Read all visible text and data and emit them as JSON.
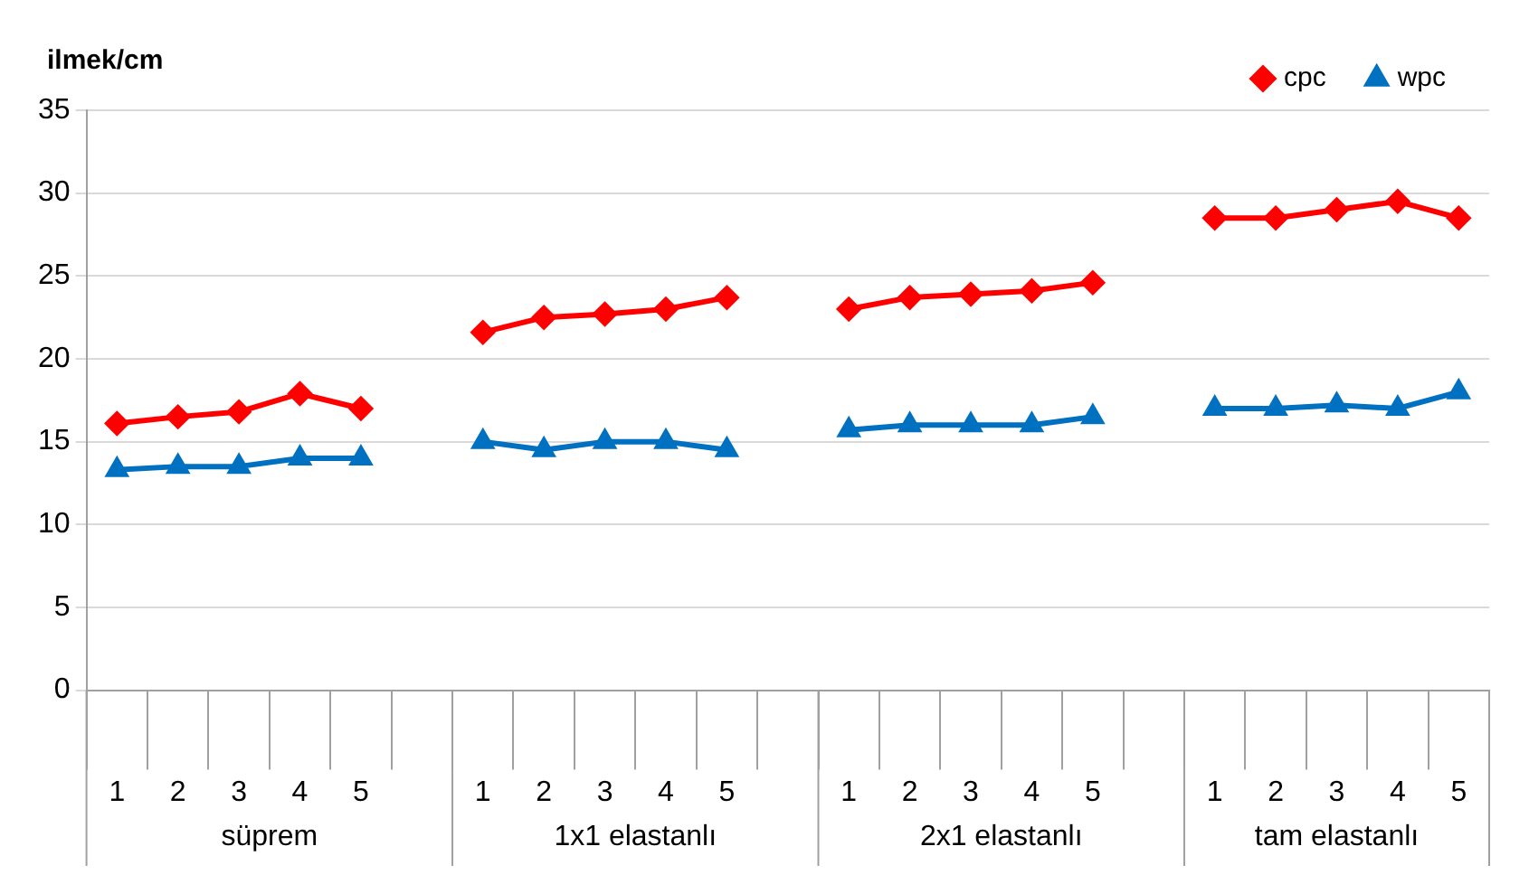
{
  "chart_data": {
    "type": "line",
    "ylabel": "ilmek/cm",
    "categories": [
      "1",
      "2",
      "3",
      "4",
      "5",
      null,
      "1",
      "2",
      "3",
      "4",
      "5",
      null,
      "1",
      "2",
      "3",
      "4",
      "5",
      null,
      "1",
      "2",
      "3",
      "4",
      "5"
    ],
    "series": [
      {
        "name": "cpc",
        "color": "#ff0000",
        "marker": "diamond",
        "values": [
          16.1,
          16.5,
          16.8,
          17.9,
          17.0,
          null,
          21.6,
          22.5,
          22.7,
          23.0,
          23.7,
          null,
          23.0,
          23.7,
          23.9,
          24.1,
          24.6,
          null,
          28.5,
          28.5,
          29.0,
          29.5,
          28.5
        ]
      },
      {
        "name": "wpc",
        "color": "#0070c0",
        "marker": "triangle",
        "values": [
          13.3,
          13.5,
          13.5,
          14.0,
          14.0,
          null,
          15.0,
          14.5,
          15.0,
          15.0,
          14.5,
          null,
          15.7,
          16.0,
          16.0,
          16.0,
          16.5,
          null,
          17.0,
          17.0,
          17.2,
          17.0,
          18.0
        ]
      }
    ],
    "annotations": [
      "süprem",
      "1x1 elastanlı",
      "2x1 elastanlı",
      "tam elastanlı"
    ],
    "ylim": [
      0,
      35
    ],
    "yticks": [
      0,
      5,
      10,
      15,
      20,
      25,
      30,
      35
    ],
    "grid": "y",
    "legend": "top right"
  }
}
